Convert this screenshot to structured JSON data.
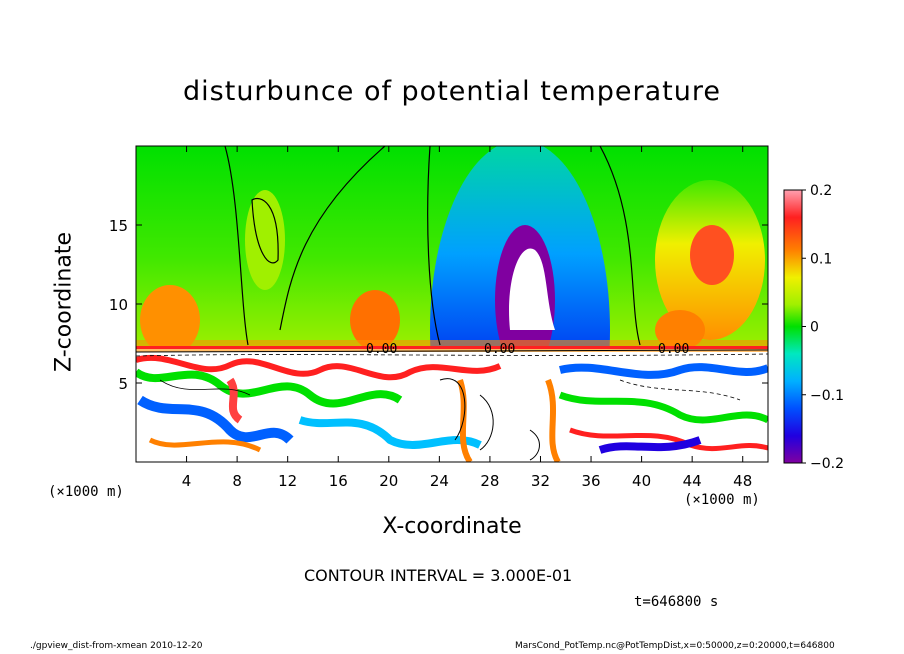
{
  "chart_data": {
    "type": "heatmap",
    "title": "disturbunce of potential temperature",
    "xlabel": "X-coordinate",
    "ylabel": "Z-coordinate",
    "x_unit_label": "(×1000 m)",
    "x_ticks": [
      "4",
      "8",
      "12",
      "16",
      "20",
      "24",
      "28",
      "32",
      "36",
      "40",
      "44",
      "48"
    ],
    "y_ticks": [
      "5",
      "10",
      "15"
    ],
    "xlim": [
      0,
      50
    ],
    "ylim": [
      0,
      20
    ],
    "colorbar": {
      "ticks": [
        "0.2",
        "0.1",
        "0",
        "−0.1",
        "−0.2"
      ],
      "range": [
        -0.2,
        0.2
      ]
    },
    "contour_label": "0.00",
    "contour_interval_text": "CONTOUR INTERVAL = 3.000E-01",
    "time_text": "t=646800 s",
    "colors": [
      "#8000a0",
      "#2000e0",
      "#0060ff",
      "#00c0ff",
      "#00e8a0",
      "#00e000",
      "#a0f000",
      "#f0f000",
      "#ffa000",
      "#ff4000",
      "#ff2020"
    ]
  },
  "footer": {
    "left": "./gpview_dist-from-xmean  2010-12-20",
    "right": "MarsCond_PotTemp.nc@PotTempDist,x=0:50000,z=0:20000,t=646800"
  }
}
